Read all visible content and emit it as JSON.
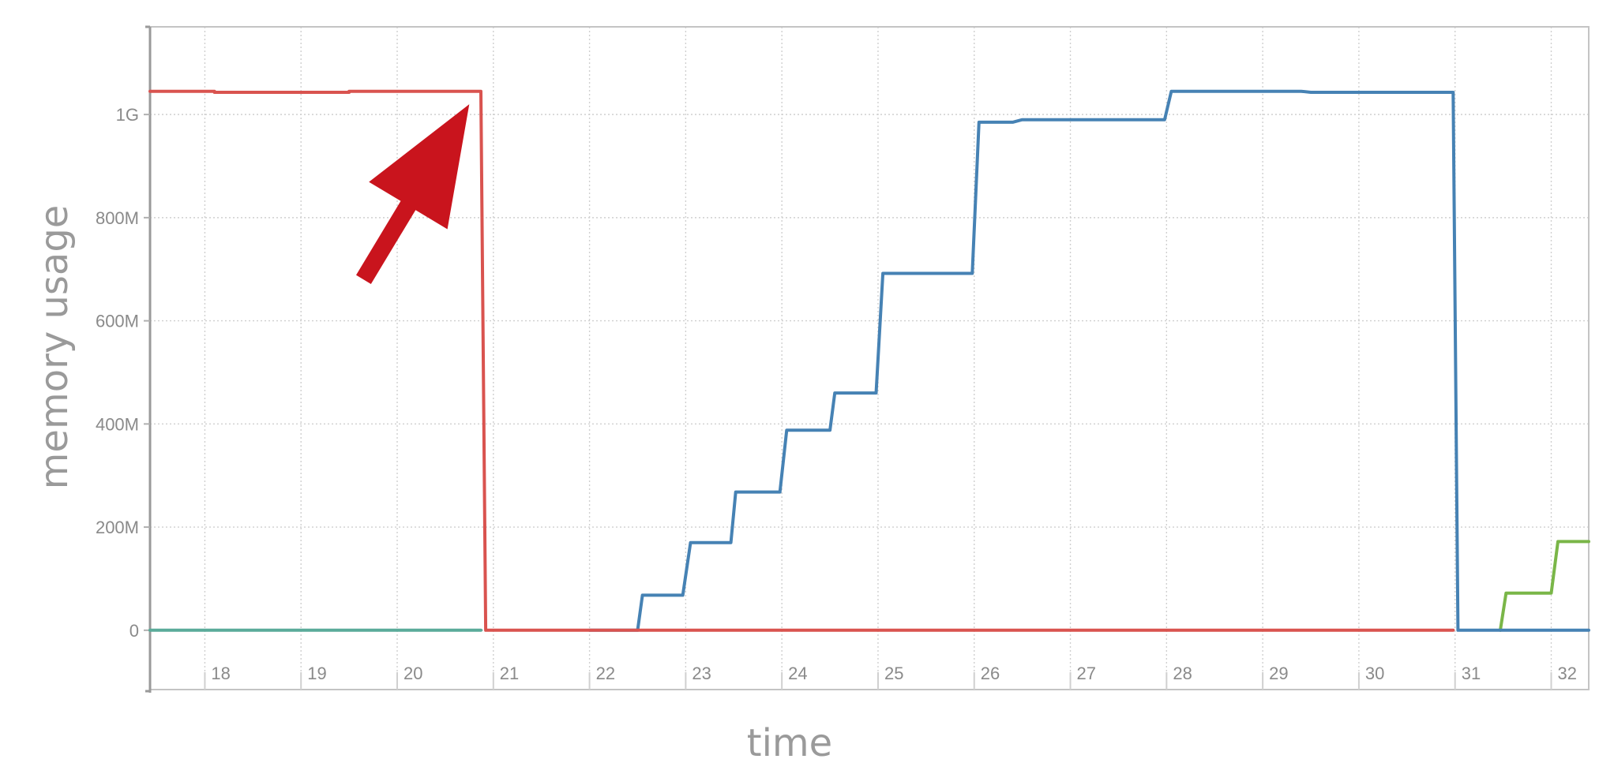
{
  "chart_data": {
    "type": "line",
    "xlabel": "time",
    "ylabel": "memory usage",
    "x_ticks": [
      18,
      19,
      20,
      21,
      22,
      23,
      24,
      25,
      26,
      27,
      28,
      29,
      30,
      31,
      32
    ],
    "xlim": [
      17.43,
      32.39
    ],
    "ylim": [
      -115,
      1170
    ],
    "y_ticks": [
      0,
      200,
      400,
      600,
      800,
      1000
    ],
    "y_tick_labels": [
      "0",
      "200M",
      "400M",
      "600M",
      "800M",
      "1G"
    ],
    "grid": true,
    "legend": "none",
    "series": [
      {
        "color": "#d9534f",
        "points": [
          [
            17.43,
            1045
          ],
          [
            18.1,
            1045
          ],
          [
            18.1,
            1043
          ],
          [
            19.5,
            1043
          ],
          [
            19.5,
            1045
          ],
          [
            20.87,
            1045
          ],
          [
            20.92,
            0
          ],
          [
            30.98,
            0
          ]
        ]
      },
      {
        "color": "#4682b4",
        "points": [
          [
            22.0,
            0
          ],
          [
            22.5,
            0
          ],
          [
            22.55,
            68
          ],
          [
            22.97,
            68
          ],
          [
            23.05,
            170
          ],
          [
            23.47,
            170
          ],
          [
            23.52,
            268
          ],
          [
            23.98,
            268
          ],
          [
            24.05,
            388
          ],
          [
            24.5,
            388
          ],
          [
            24.55,
            460
          ],
          [
            24.98,
            460
          ],
          [
            25.05,
            692
          ],
          [
            25.98,
            692
          ],
          [
            26.05,
            985
          ],
          [
            26.4,
            985
          ],
          [
            26.5,
            990
          ],
          [
            27.98,
            990
          ],
          [
            28.05,
            1045
          ],
          [
            29.4,
            1045
          ],
          [
            29.5,
            1043
          ],
          [
            30.98,
            1043
          ],
          [
            31.03,
            0
          ],
          [
            32.39,
            0
          ]
        ]
      },
      {
        "color": "#5aab9a",
        "points": [
          [
            17.43,
            0
          ],
          [
            20.87,
            0
          ]
        ]
      },
      {
        "color": "#7ab648",
        "points": [
          [
            31.47,
            0
          ],
          [
            31.53,
            72
          ],
          [
            32.0,
            72
          ],
          [
            32.07,
            172
          ],
          [
            32.39,
            172
          ]
        ]
      }
    ],
    "annotations": [
      {
        "type": "arrow",
        "color": "#c9141d",
        "tail": [
          19.65,
          680
        ],
        "head": [
          20.75,
          1020
        ]
      }
    ]
  }
}
